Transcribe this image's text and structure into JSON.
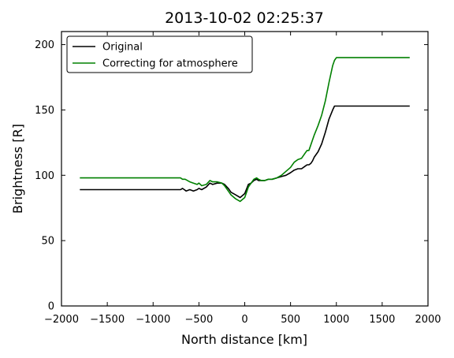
{
  "chart_data": {
    "type": "line",
    "title": "2013-10-02 02:25:37",
    "xlabel": "North distance [km]",
    "ylabel": "Brightness [R]",
    "xlim": [
      -2000,
      2000
    ],
    "ylim": [
      0,
      210
    ],
    "xticks": [
      -2000,
      -1500,
      -1000,
      -500,
      0,
      500,
      1000,
      1500,
      2000
    ],
    "yticks": [
      0,
      50,
      100,
      150,
      200
    ],
    "xtick_labels": [
      "−2000",
      "−1500",
      "−1000",
      "−500",
      "0",
      "500",
      "1000",
      "1500",
      "2000"
    ],
    "ytick_labels": [
      "0",
      "50",
      "100",
      "150",
      "200"
    ],
    "grid": false,
    "legend_position": "top-left",
    "series": [
      {
        "name": "Original",
        "color": "#000000",
        "x": [
          -1800,
          -1000,
          -750,
          -700,
          -680,
          -660,
          -640,
          -600,
          -560,
          -520,
          -500,
          -470,
          -420,
          -380,
          -350,
          -300,
          -250,
          -220,
          -180,
          -150,
          -100,
          -50,
          0,
          40,
          70,
          100,
          130,
          150,
          180,
          220,
          260,
          300,
          350,
          400,
          450,
          500,
          540,
          580,
          620,
          660,
          680,
          700,
          720,
          740,
          760,
          800,
          840,
          880,
          920,
          960,
          980,
          1000,
          1050,
          1100,
          1200,
          1400,
          1600,
          1800
        ],
        "y": [
          89,
          89,
          89,
          89,
          90,
          89,
          88,
          89,
          88,
          89,
          90,
          89,
          91,
          94,
          93,
          94,
          94,
          93,
          90,
          87,
          85,
          83,
          86,
          93,
          94,
          96,
          97,
          96,
          96,
          96,
          97,
          97,
          98,
          99,
          100,
          102,
          104,
          105,
          105,
          107,
          108,
          108,
          109,
          111,
          114,
          118,
          124,
          133,
          143,
          150,
          153,
          153,
          153,
          153,
          153,
          153,
          153,
          153
        ]
      },
      {
        "name": "Correcting for atmosphere",
        "color": "#008000",
        "x": [
          -1800,
          -1000,
          -750,
          -720,
          -700,
          -680,
          -650,
          -600,
          -560,
          -520,
          -500,
          -470,
          -420,
          -380,
          -350,
          -300,
          -250,
          -220,
          -180,
          -150,
          -100,
          -50,
          0,
          40,
          70,
          100,
          130,
          150,
          180,
          220,
          260,
          300,
          350,
          400,
          450,
          500,
          540,
          580,
          620,
          660,
          680,
          700,
          720,
          740,
          760,
          800,
          840,
          880,
          920,
          960,
          980,
          1000,
          1050,
          1100,
          1200,
          1400,
          1600,
          1800
        ],
        "y": [
          98,
          98,
          98,
          98,
          98,
          97,
          97,
          95,
          94,
          93,
          94,
          92,
          93,
          96,
          95,
          95,
          94,
          92,
          88,
          85,
          82,
          80,
          83,
          91,
          94,
          97,
          98,
          97,
          96,
          96,
          97,
          97,
          98,
          100,
          103,
          106,
          110,
          112,
          113,
          117,
          119,
          119,
          123,
          127,
          131,
          138,
          146,
          157,
          171,
          184,
          188,
          190,
          190,
          190,
          190,
          190,
          190,
          190
        ]
      }
    ]
  }
}
